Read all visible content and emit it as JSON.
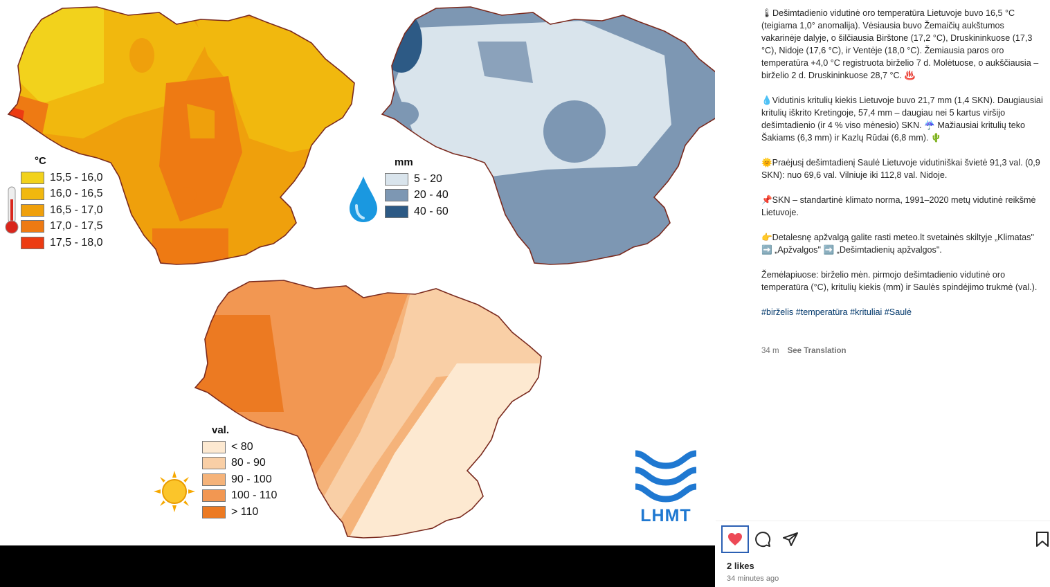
{
  "post": {
    "caption": [
      "🌡Dešimtadienio vidutinė oro temperatūra Lietuvoje buvo 16,5 °C (teigiama 1,0° anomalija). Vėsiausia buvo Žemaičių aukštumos vakarinėje dalyje, o šilčiausia Birštone (17,2 °C), Druskininkuose (17,3 °C), Nidoje (17,6 °C), ir Ventėje (18,0 °C). Žemiausia paros oro temperatūra +4,0 °C registruota birželio 7 d. Molėtuose, o aukščiausia – birželio 2 d. Druskininkuose 28,7 °C. ♨️",
      "💧Vidutinis kritulių kiekis Lietuvoje buvo 21,7 mm (1,4 SKN). Daugiausiai kritulių iškrito Kretingoje, 57,4 mm – daugiau nei 5 kartus viršijo dešimtadienio (ir 4 % viso mėnesio) SKN. ☔ Mažiausiai kritulių teko Šakiams (6,3 mm) ir Kazlų Rūdai (6,8 mm). 🌵",
      "🌞Praėjusį dešimtadienį Saulė Lietuvoje vidutiniškai švietė 91,3 val. (0,9 SKN): nuo 69,6 val. Vilniuje iki 112,8 val. Nidoje.",
      "📌SKN – standartinė klimato norma, 1991–2020 metų vidutinė reikšmė Lietuvoje.",
      "👉Detalesnę apžvalgą galite rasti meteo.lt svetainės skiltyje „Klimatas\" ➡️ „Apžvalgos\" ➡️ „Dešimtadienių apžvalgos\".",
      "Žemėlapiuose: birželio mėn. pirmojo dešimtadienio vidutinė oro temperatūra (°C), kritulių kiekis (mm) ir Saulės spindėjimo trukmė (val.)."
    ],
    "hashtags": "#birželis #temperatūra #krituliai #Saulė",
    "age": "34 m",
    "see_translation": "See Translation",
    "likes": "2 likes",
    "posted": "34 minutes ago",
    "icons": {
      "like": "heart-icon",
      "comment": "comment-icon",
      "share": "share-icon",
      "save": "bookmark-icon"
    },
    "like_color": "#ed4956"
  },
  "maps": {
    "temperature": {
      "unit": "°C",
      "icon": "thermometer-icon",
      "legend": [
        {
          "label": "15,5 - 16,0",
          "color": "#f2d21c"
        },
        {
          "label": "16,0 - 16,5",
          "color": "#f1b80e"
        },
        {
          "label": "16,5 - 17,0",
          "color": "#efa00c"
        },
        {
          "label": "17,0 - 17,5",
          "color": "#ee7a13"
        },
        {
          "label": "17,5 - 18,0",
          "color": "#ec3b12"
        }
      ]
    },
    "precipitation": {
      "unit": "mm",
      "icon": "water-drop-icon",
      "legend": [
        {
          "label": "5 - 20",
          "color": "#d9e4ec"
        },
        {
          "label": "20 - 40",
          "color": "#7d97b3"
        },
        {
          "label": "40 - 60",
          "color": "#2d5a85"
        }
      ]
    },
    "sunshine": {
      "unit": "val.",
      "icon": "sun-icon",
      "legend": [
        {
          "label": "< 80",
          "color": "#fde9d1"
        },
        {
          "label": "80 - 90",
          "color": "#f9cfa6"
        },
        {
          "label": "90 - 100",
          "color": "#f5b37a"
        },
        {
          "label": "100 - 110",
          "color": "#f29752"
        },
        {
          "label": "> 110",
          "color": "#ec7a22"
        }
      ]
    },
    "logo": "LHMT"
  }
}
